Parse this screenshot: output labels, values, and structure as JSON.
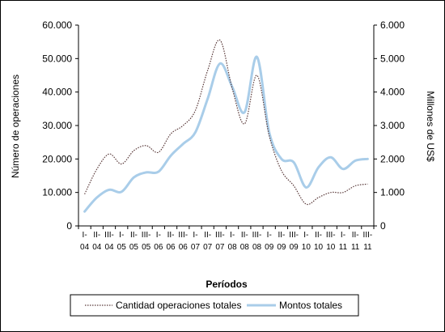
{
  "chart_data": {
    "type": "line",
    "xlabel": "Períodos",
    "ylabel_left": "Número de operaciones",
    "ylabel_right": "Millones de US$",
    "ylim_left": [
      0,
      60000
    ],
    "ylim_right": [
      0,
      6000
    ],
    "yticks_left": [
      "0",
      "10.000",
      "20.000",
      "30.000",
      "40.000",
      "50.000",
      "60.000"
    ],
    "yticks_right": [
      "0",
      "1.000",
      "2.000",
      "3.000",
      "4.000",
      "5.000",
      "6.000"
    ],
    "grid": false,
    "legend_position": "bottom",
    "categories": [
      [
        "I-",
        "04"
      ],
      [
        "II-",
        "04"
      ],
      [
        "III-",
        "04"
      ],
      [
        "I-",
        "05"
      ],
      [
        "II-",
        "05"
      ],
      [
        "III-",
        "05"
      ],
      [
        "I-",
        "06"
      ],
      [
        "II-",
        "06"
      ],
      [
        "III-",
        "06"
      ],
      [
        "I-",
        "07"
      ],
      [
        "II-",
        "07"
      ],
      [
        "III-",
        "07"
      ],
      [
        "I-",
        "08"
      ],
      [
        "II-",
        "08"
      ],
      [
        "III-",
        "08"
      ],
      [
        "I-",
        "09"
      ],
      [
        "II-",
        "09"
      ],
      [
        "III-",
        "09"
      ],
      [
        "I-",
        "10"
      ],
      [
        "II-",
        "10"
      ],
      [
        "III-",
        "10"
      ],
      [
        "I-",
        "11"
      ],
      [
        "II-",
        "11"
      ],
      [
        "III-",
        "11"
      ]
    ],
    "series": [
      {
        "name": "Cantidad operaciones totales",
        "axis": "left",
        "color": "#5a3a3a",
        "style": "dotted",
        "values": [
          9500,
          17000,
          21500,
          18500,
          22500,
          24000,
          22000,
          27500,
          30000,
          34500,
          46500,
          55500,
          41000,
          30500,
          45000,
          27000,
          16500,
          12000,
          6500,
          8500,
          10000,
          10000,
          12000,
          12500
        ]
      },
      {
        "name": "Montos totales",
        "axis": "right",
        "color": "#a9cde9",
        "style": "solid",
        "values": [
          430,
          850,
          1080,
          1020,
          1450,
          1600,
          1620,
          2100,
          2450,
          2800,
          3800,
          4850,
          4150,
          3400,
          5050,
          2800,
          2000,
          1900,
          1150,
          1750,
          2050,
          1700,
          1950,
          2000
        ]
      }
    ]
  }
}
